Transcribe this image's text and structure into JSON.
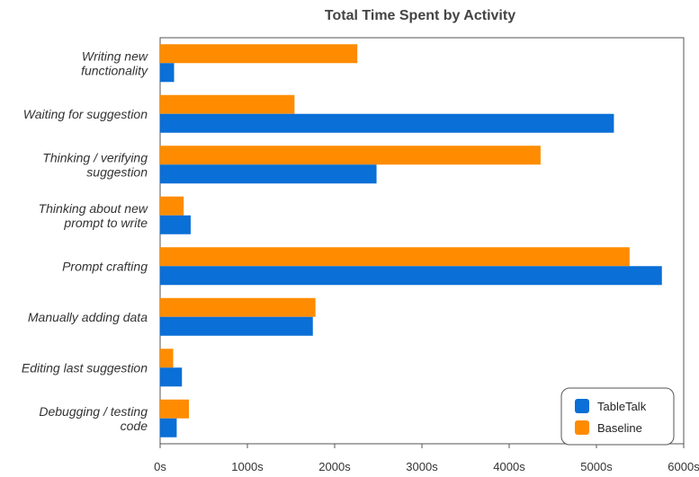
{
  "chart_data": {
    "type": "bar",
    "orientation": "horizontal",
    "title": "Total Time Spent by Activity",
    "xlabel": "",
    "ylabel": "",
    "xlim": [
      0,
      6000
    ],
    "x_ticks": [
      "0s",
      "1000s",
      "2000s",
      "3000s",
      "4000s",
      "5000s",
      "6000s"
    ],
    "grid": false,
    "legend_position": "bottom-right",
    "categories": [
      [
        "Writing new",
        "functionality"
      ],
      [
        "Waiting for suggestion"
      ],
      [
        "Thinking / verifying",
        "suggestion"
      ],
      [
        "Thinking about new",
        "prompt to write"
      ],
      [
        "Prompt crafting"
      ],
      [
        "Manually adding data"
      ],
      [
        "Editing last suggestion"
      ],
      [
        "Debugging / testing",
        "code"
      ]
    ],
    "series": [
      {
        "name": "Baseline",
        "color": "#ff8c00",
        "values": [
          2260,
          1540,
          4360,
          270,
          5380,
          1780,
          150,
          330
        ]
      },
      {
        "name": "TableTalk",
        "color": "#0a6fd6",
        "values": [
          160,
          5200,
          2480,
          350,
          5750,
          1750,
          250,
          190
        ]
      }
    ],
    "legend_order": [
      "TableTalk",
      "Baseline"
    ]
  }
}
